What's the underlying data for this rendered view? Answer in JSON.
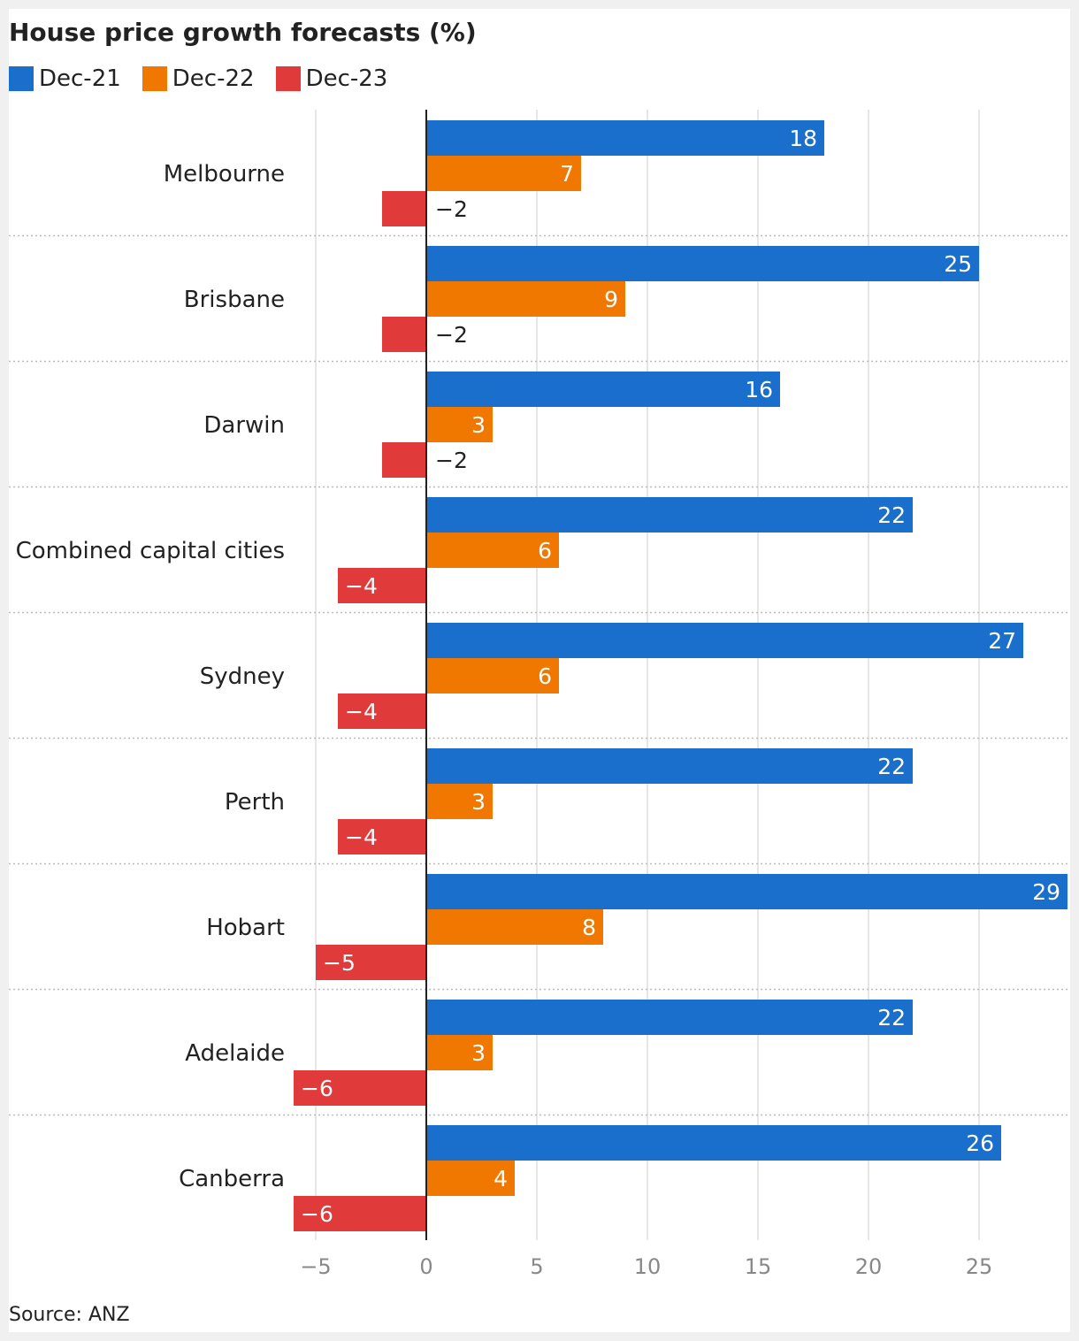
{
  "chart_data": {
    "type": "bar",
    "orientation": "horizontal",
    "title": "House price growth forecasts (%)",
    "source": "Source: ANZ",
    "categories": [
      "Melbourne",
      "Brisbane",
      "Darwin",
      "Combined capital cities",
      "Sydney",
      "Perth",
      "Hobart",
      "Adelaide",
      "Canberra"
    ],
    "series": [
      {
        "name": "Dec-21",
        "color": "#1a6ecc",
        "values": [
          18,
          25,
          16,
          22,
          27,
          22,
          29,
          22,
          26
        ]
      },
      {
        "name": "Dec-22",
        "color": "#f07800",
        "values": [
          7,
          9,
          3,
          6,
          6,
          3,
          8,
          3,
          4
        ]
      },
      {
        "name": "Dec-23",
        "color": "#e03a3a",
        "values": [
          -2,
          -2,
          -2,
          -4,
          -4,
          -4,
          -5,
          -6,
          -6
        ]
      }
    ],
    "value_labels": [
      [
        "18",
        "25",
        "16",
        "22",
        "27",
        "22",
        "29",
        "22",
        "26"
      ],
      [
        "7",
        "9",
        "3",
        "6",
        "6",
        "3",
        "8",
        "3",
        "4"
      ],
      [
        "−2",
        "−2",
        "−2",
        "−4",
        "−4",
        "−4",
        "−5",
        "−6",
        "−6"
      ]
    ],
    "xlim": [
      -6,
      29
    ],
    "xticks": [
      -5,
      0,
      5,
      10,
      15,
      20,
      25
    ],
    "xtick_labels": [
      "−5",
      "0",
      "5",
      "10",
      "15",
      "20",
      "25"
    ],
    "grid": true,
    "legend_position": "top-left"
  }
}
